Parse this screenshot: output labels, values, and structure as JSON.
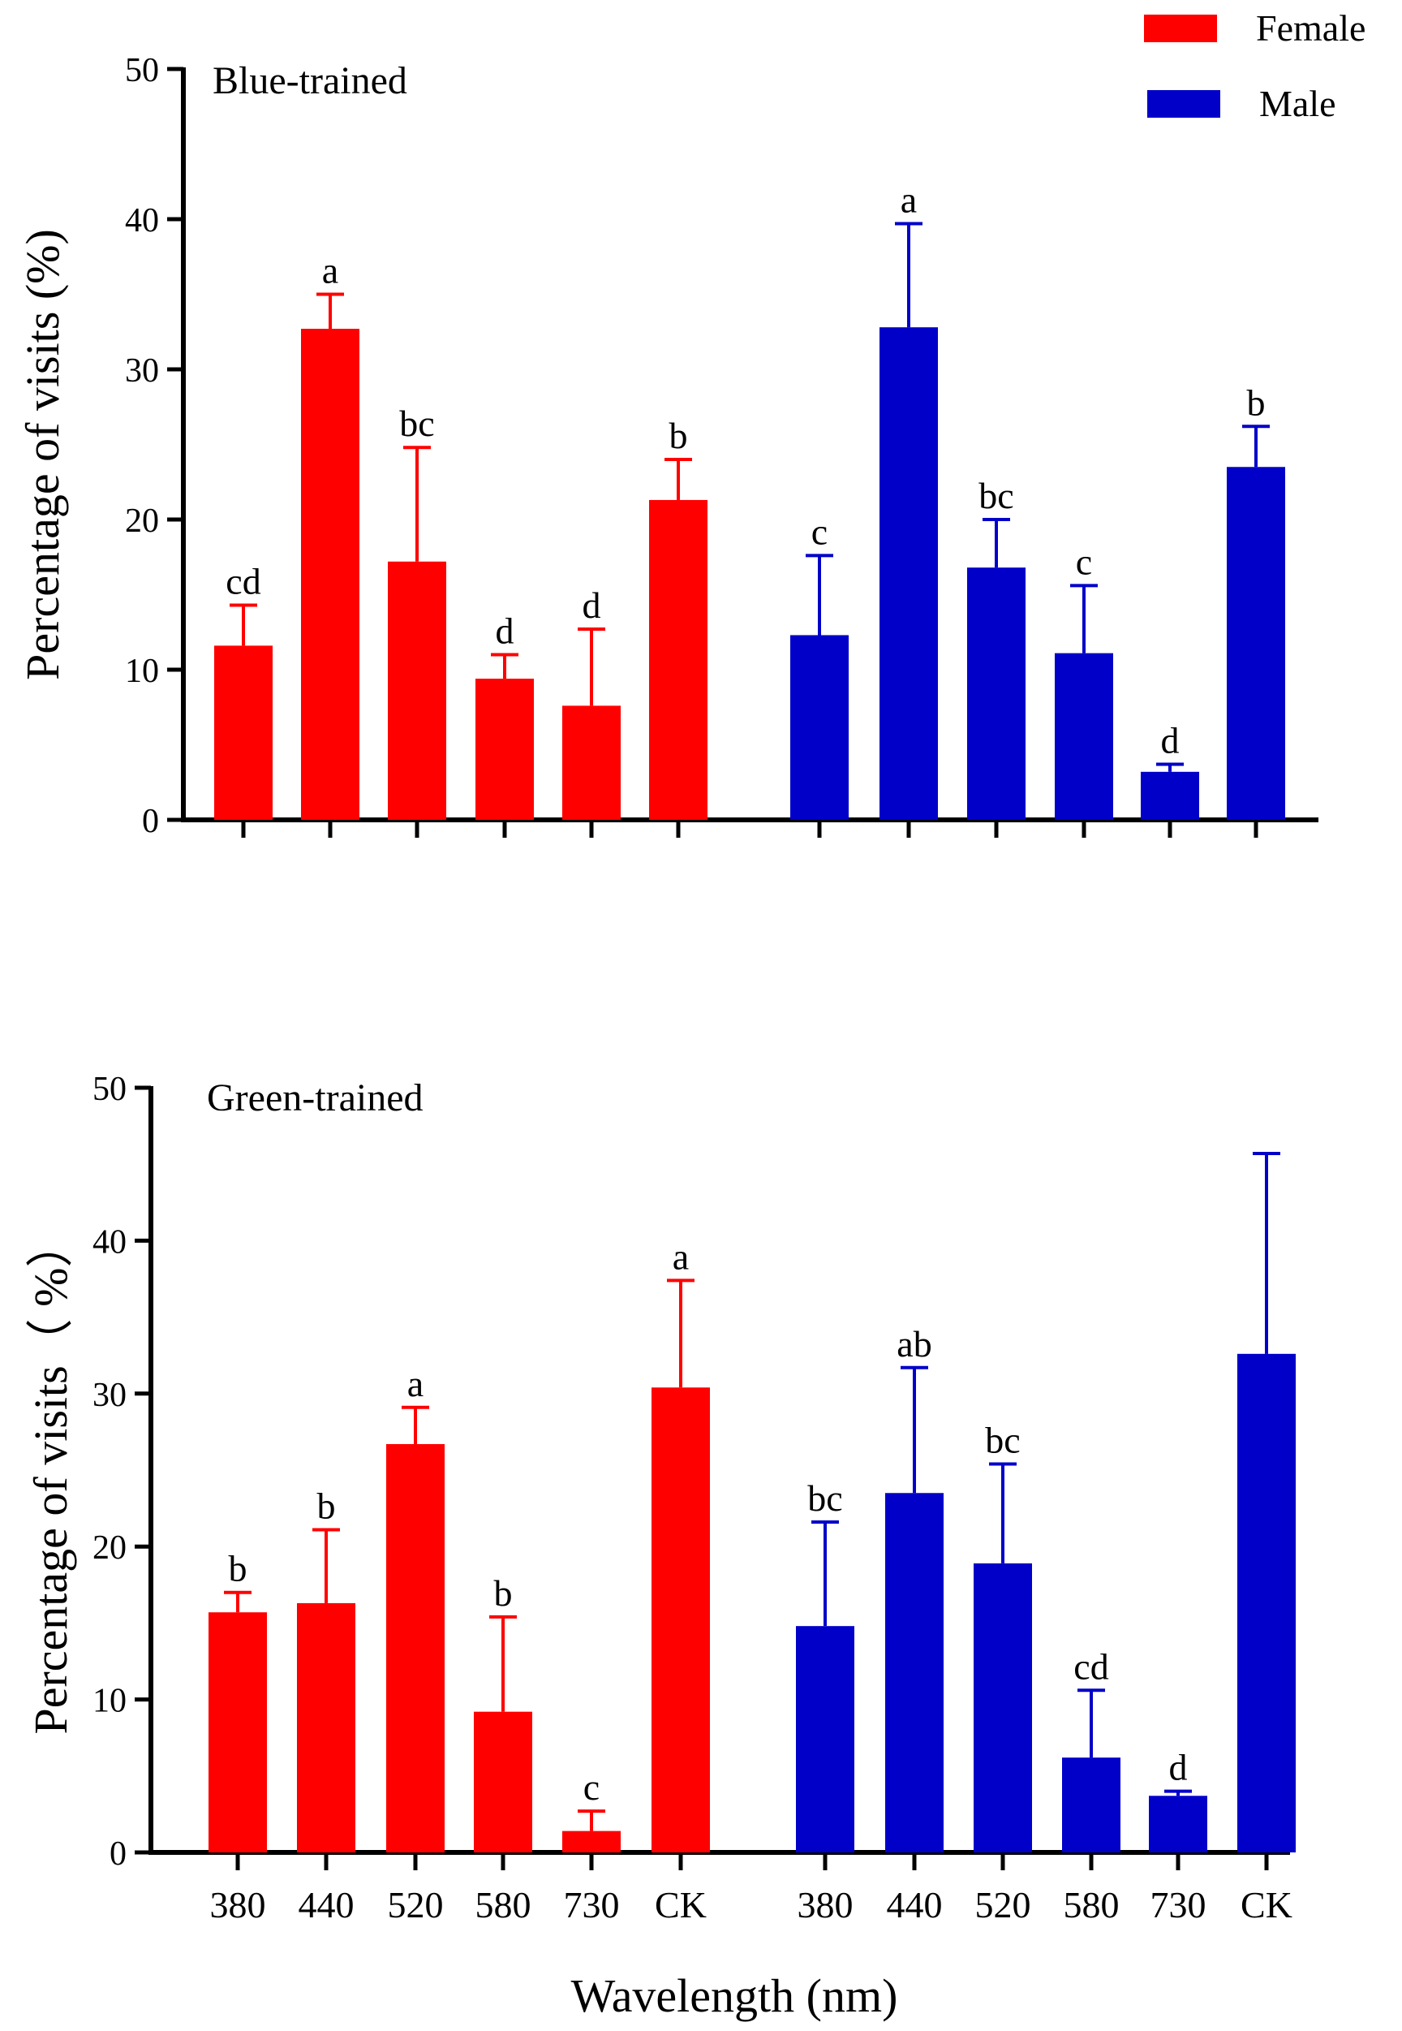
{
  "colors": {
    "female": "#ff0000",
    "male": "#0000c8",
    "axis": "#000000"
  },
  "legend": [
    {
      "name": "Female",
      "color": "#ff0000"
    },
    {
      "name": "Male",
      "color": "#0000c8"
    }
  ],
  "x_axis_title": "Wavelength (nm)",
  "chart_data": [
    {
      "type": "bar",
      "title": "Blue-trained",
      "ylabel": "Percentage of visits (%)",
      "xlabel": "",
      "ylim": [
        0,
        50
      ],
      "yticks": [
        "0",
        "10",
        "20",
        "30",
        "40",
        "50"
      ],
      "categories": [
        "380",
        "440",
        "520",
        "580",
        "730",
        "CK"
      ],
      "show_category_labels": false,
      "series": [
        {
          "name": "Female",
          "color": "#ff0000",
          "values": [
            11.6,
            32.7,
            17.2,
            9.4,
            7.6,
            21.3
          ],
          "errors": [
            2.7,
            2.3,
            7.6,
            1.6,
            5.1,
            2.7
          ],
          "letters": [
            "cd",
            "a",
            "bc",
            "d",
            "d",
            "b"
          ]
        },
        {
          "name": "Male",
          "color": "#0000c8",
          "values": [
            12.3,
            32.8,
            16.8,
            11.1,
            3.2,
            23.5
          ],
          "errors": [
            5.3,
            6.9,
            3.2,
            4.5,
            0.5,
            2.7
          ],
          "letters": [
            "c",
            "a",
            "bc",
            "c",
            "d",
            "b"
          ]
        }
      ]
    },
    {
      "type": "bar",
      "title": "Green-trained",
      "ylabel": "Percentage of visits（ %）",
      "xlabel": "Wavelength (nm)",
      "ylim": [
        0,
        50
      ],
      "yticks": [
        "0",
        "10",
        "20",
        "30",
        "40",
        "50"
      ],
      "categories": [
        "380",
        "440",
        "520",
        "580",
        "730",
        "CK"
      ],
      "show_category_labels": true,
      "series": [
        {
          "name": "Female",
          "color": "#ff0000",
          "values": [
            15.7,
            16.3,
            26.7,
            9.2,
            1.4,
            30.4
          ],
          "errors": [
            1.3,
            4.8,
            2.4,
            6.2,
            1.3,
            7.0
          ],
          "letters": [
            "b",
            "b",
            "a",
            "b",
            "c",
            "a"
          ]
        },
        {
          "name": "Male",
          "color": "#0000c8",
          "values": [
            14.8,
            23.5,
            18.9,
            6.2,
            3.7,
            32.6
          ],
          "errors": [
            6.8,
            8.2,
            6.5,
            4.4,
            0.3,
            13.1
          ],
          "letters": [
            "bc",
            "ab",
            "bc",
            "cd",
            "d",
            ""
          ]
        }
      ]
    }
  ]
}
